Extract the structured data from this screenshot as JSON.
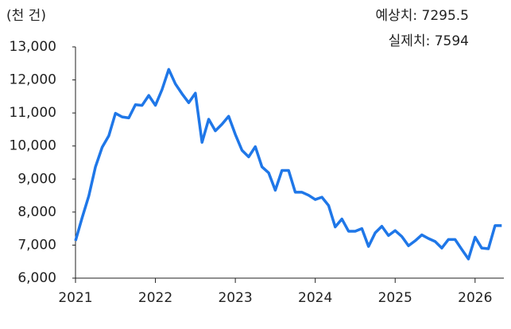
{
  "chart_data": {
    "type": "line",
    "annotations": [
      "(천 건)",
      "예상치: 7295.5",
      "실제치: 7594"
    ],
    "categories": [
      "2021",
      null,
      null,
      null,
      null,
      null,
      null,
      null,
      null,
      null,
      null,
      null,
      "2022",
      null,
      null,
      null,
      null,
      null,
      null,
      null,
      null,
      null,
      null,
      null,
      "2023",
      null,
      null,
      null,
      null,
      null,
      null,
      null,
      null,
      null,
      null,
      null,
      "2024",
      null,
      null,
      null,
      null,
      null,
      null,
      null,
      null,
      null,
      null,
      null,
      "2025",
      null,
      null,
      null,
      null,
      null,
      null,
      null,
      null,
      null,
      null,
      null,
      "2026",
      null,
      null,
      null,
      null
    ],
    "series": [
      {
        "color": "#1f77e8",
        "values": [
          7130,
          7830,
          8490,
          9370,
          9960,
          10310,
          10990,
          10880,
          10850,
          11250,
          11230,
          11530,
          11230,
          11710,
          12320,
          11880,
          11580,
          11310,
          11600,
          10110,
          10810,
          10460,
          10660,
          10900,
          10350,
          9870,
          9670,
          9980,
          9370,
          9190,
          8660,
          9260,
          9260,
          8600,
          8600,
          8510,
          8380,
          8450,
          8200,
          7550,
          7790,
          7420,
          7420,
          7500,
          6960,
          7370,
          7570,
          7290,
          7440,
          7260,
          6980,
          7130,
          7310,
          7200,
          7110,
          6910,
          7170,
          7170,
          6870,
          6580,
          7240,
          6910,
          6890,
          7590,
          7590
        ]
      }
    ],
    "ylim": [
      6000,
      13000
    ],
    "yticks": [
      {
        "value": 6000,
        "label": "6,000"
      },
      {
        "value": 7000,
        "label": "7,000"
      },
      {
        "value": 8000,
        "label": "8,000"
      },
      {
        "value": 9000,
        "label": "9,000"
      },
      {
        "value": 10000,
        "label": "10,000"
      },
      {
        "value": 11000,
        "label": "11,000"
      },
      {
        "value": 12000,
        "label": "12,000"
      },
      {
        "value": 13000,
        "label": "13,000"
      }
    ],
    "grid": false
  }
}
